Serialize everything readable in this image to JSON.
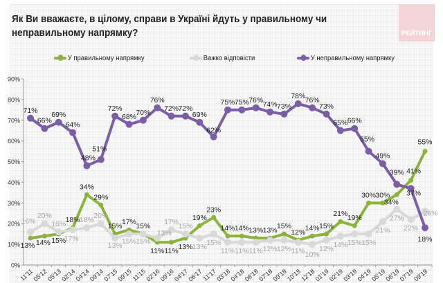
{
  "header": {
    "title": "Як Ви вважаєте, в цілому, справи в Україні йдуть у правильному чи неправильному напрямку?",
    "logo_text": "РЕЙТИНГ"
  },
  "chart_data": {
    "type": "line",
    "title": "Як Ви вважаєте, в цілому, справи в Україні йдуть у правильному чи неправильному напрямку?",
    "xlabel": "",
    "ylabel": "",
    "ylim": [
      0,
      90
    ],
    "yticks": [
      "0%",
      "10%",
      "20%",
      "30%",
      "40%",
      "50%",
      "60%",
      "70%",
      "80%",
      "90%"
    ],
    "ytick_values": [
      0,
      10,
      20,
      30,
      40,
      50,
      60,
      70,
      80,
      90
    ],
    "grid": true,
    "legend_position": "top",
    "categories": [
      "11'11",
      "05'12",
      "05'13",
      "02'14",
      "04'14",
      "09'14",
      "07'15",
      "09'15",
      "11'15",
      "02'16",
      "09'16",
      "04'17",
      "06'17",
      "11'17",
      "03'18",
      "04'18",
      "06'18",
      "07'18",
      "09'18",
      "10'18",
      "12'18",
      "01'19",
      "02'19",
      "03'19",
      "04'19",
      "05'19",
      "06'19",
      "07'19",
      "09'19"
    ],
    "series": [
      {
        "name": "У правильному напрямку",
        "color": "#8cb43c",
        "values": [
          13,
          14,
          15,
          18,
          34,
          29,
          15,
          17,
          15,
          11,
          11,
          13,
          19,
          23,
          14,
          14,
          13,
          13,
          15,
          12,
          14,
          15,
          21,
          19,
          30,
          30,
          34,
          41,
          55
        ]
      },
      {
        "name": "Важко відповісти",
        "color": "#d9d9d9",
        "label_color": "#a6a6a6",
        "values": [
          16,
          20,
          16,
          17,
          18,
          20,
          13,
          15,
          15,
          13,
          17,
          15,
          13,
          15,
          11,
          11,
          11,
          12,
          12,
          11,
          10,
          12,
          14,
          15,
          15,
          21,
          27,
          22,
          26
        ]
      },
      {
        "name": "У неправильному напрямку",
        "color": "#7b5ea7",
        "values": [
          71,
          66,
          69,
          64,
          48,
          51,
          72,
          68,
          70,
          76,
          72,
          72,
          69,
          62,
          75,
          75,
          76,
          74,
          73,
          78,
          76,
          73,
          65,
          66,
          55,
          49,
          39,
          37,
          18
        ]
      }
    ],
    "value_suffix": "%"
  }
}
